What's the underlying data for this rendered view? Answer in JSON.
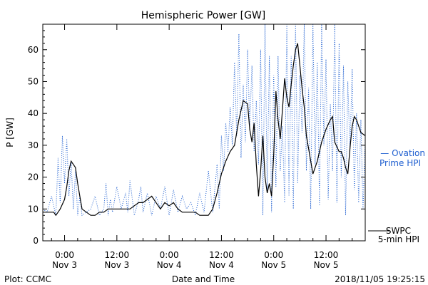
{
  "chart_data": {
    "type": "line",
    "title": "Hemispheric Power [GW]",
    "xlabel": "Date and Time",
    "ylabel": "P [GW]",
    "ylim": [
      0,
      68
    ],
    "yticks": [
      0,
      10,
      20,
      30,
      40,
      50,
      60
    ],
    "xlim_hours": [
      -5,
      69
    ],
    "xticks": [
      {
        "hour": 0,
        "time": "0:00",
        "date": "Nov 3"
      },
      {
        "hour": 12,
        "time": "12:00",
        "date": "Nov 3"
      },
      {
        "hour": 24,
        "time": "0:00",
        "date": "Nov 4"
      },
      {
        "hour": 36,
        "time": "12:00",
        "date": "Nov 4"
      },
      {
        "hour": 48,
        "time": "0:00",
        "date": "Nov 5"
      },
      {
        "hour": 60,
        "time": "12:00",
        "date": "Nov 5"
      }
    ],
    "series": [
      {
        "name": "Ovation Prime HPI",
        "legend_text": "— Ovation",
        "legend_text2": "Prime HPI",
        "color": "#1f5fd0",
        "style": "dotted",
        "x": [
          -5,
          -4,
          -3,
          -2,
          -1.5,
          -1,
          -0.5,
          0,
          0.5,
          1,
          1.5,
          2,
          2.5,
          3,
          3.5,
          4,
          5,
          6,
          7,
          8,
          9,
          9.5,
          10,
          10.5,
          11,
          12,
          13,
          14,
          14.5,
          15,
          16,
          17,
          17.5,
          18,
          19,
          20,
          21,
          22,
          23,
          24,
          25,
          26,
          27,
          28,
          29,
          30,
          31,
          32,
          33,
          34,
          35,
          35.5,
          36,
          36.5,
          37,
          37.5,
          38,
          38.5,
          39,
          39.5,
          40,
          40.5,
          41,
          41.5,
          42,
          42.5,
          43,
          43.5,
          44,
          44.5,
          45,
          45.5,
          46,
          46.5,
          47,
          47.5,
          48,
          48.5,
          49,
          49.5,
          50,
          50.5,
          51,
          51.5,
          52,
          52.5,
          53,
          53.5,
          54,
          54.5,
          55,
          55.5,
          56,
          56.5,
          57,
          57.5,
          58,
          58.5,
          59,
          59.5,
          60,
          60.5,
          61,
          61.5,
          62,
          62.5,
          63,
          63.5,
          64,
          64.5,
          65,
          65.5,
          66,
          66.5,
          67,
          67.5,
          68,
          68.5,
          69
        ],
        "y": [
          10,
          9,
          14,
          8,
          26,
          12,
          33,
          18,
          32,
          14,
          25,
          10,
          22,
          8,
          14,
          8,
          9,
          10,
          14,
          8,
          10,
          18,
          8,
          13,
          9,
          17,
          10,
          15,
          9,
          19,
          8,
          13,
          17,
          9,
          15,
          8,
          14,
          10,
          17,
          8,
          16,
          9,
          14,
          10,
          12,
          8,
          15,
          9,
          22,
          9,
          24,
          10,
          33,
          22,
          37,
          28,
          42,
          30,
          56,
          33,
          65,
          26,
          49,
          31,
          60,
          36,
          55,
          28,
          44,
          24,
          60,
          8,
          68,
          16,
          58,
          9,
          52,
          17,
          58,
          22,
          36,
          12,
          68,
          14,
          58,
          10,
          68,
          18,
          52,
          34,
          68,
          22,
          48,
          10,
          68,
          24,
          56,
          11,
          68,
          30,
          57,
          13,
          43,
          22,
          68,
          12,
          62,
          20,
          55,
          8,
          50,
          28,
          54,
          16,
          40,
          12,
          38,
          10,
          32
        ]
      },
      {
        "name": "5-min HPI",
        "legend_text": "SWPC",
        "legend_text2": "5-min HPI",
        "color": "#000000",
        "style": "solid",
        "x": [
          -5,
          -4,
          -3,
          -2.5,
          -2,
          -1.5,
          -1,
          0,
          0.5,
          1,
          1.5,
          2,
          2.5,
          3,
          3.5,
          4,
          5,
          6,
          7,
          8,
          9,
          10,
          11,
          12,
          13,
          14,
          15,
          16,
          17,
          18,
          19,
          20,
          21,
          22,
          23,
          24,
          25,
          26,
          27,
          28,
          29,
          30,
          31,
          32,
          33,
          34,
          35,
          36,
          37,
          38,
          39,
          40,
          41,
          42,
          42.5,
          43,
          43.5,
          44,
          44.5,
          45,
          45.5,
          46,
          46.5,
          47,
          47.5,
          48,
          48.5,
          49,
          49.5,
          50,
          50.5,
          51,
          51.5,
          52,
          52.5,
          53,
          53.5,
          54,
          54.5,
          55,
          55.5,
          56,
          56.5,
          57,
          58,
          59,
          60,
          61,
          61.5,
          62,
          63,
          63.5,
          64,
          64.5,
          65,
          65.5,
          66,
          66.5,
          67,
          68,
          69
        ],
        "y": [
          9,
          9,
          9,
          9,
          8,
          9,
          10,
          13,
          17,
          22,
          25,
          24,
          23,
          18,
          14,
          10,
          9,
          8,
          8,
          9,
          9,
          10,
          10,
          10,
          10,
          10,
          10,
          11,
          12,
          12,
          13,
          14,
          12,
          10,
          12,
          11,
          12,
          10,
          9,
          9,
          9,
          9,
          8,
          8,
          8,
          10,
          15,
          21,
          25,
          28,
          30,
          38,
          44,
          43,
          35,
          31,
          37,
          24,
          14,
          22,
          33,
          20,
          15,
          18,
          14,
          27,
          47,
          38,
          32,
          41,
          51,
          45,
          42,
          49,
          55,
          60,
          62,
          55,
          48,
          42,
          33,
          29,
          25,
          21,
          25,
          31,
          35,
          38,
          39,
          31,
          28,
          28,
          26,
          23,
          21,
          29,
          36,
          39,
          38,
          34,
          33
        ]
      }
    ],
    "footer_left": "Plot: CCMC",
    "footer_right": "2018/11/05 19:25:15",
    "grid": false
  }
}
